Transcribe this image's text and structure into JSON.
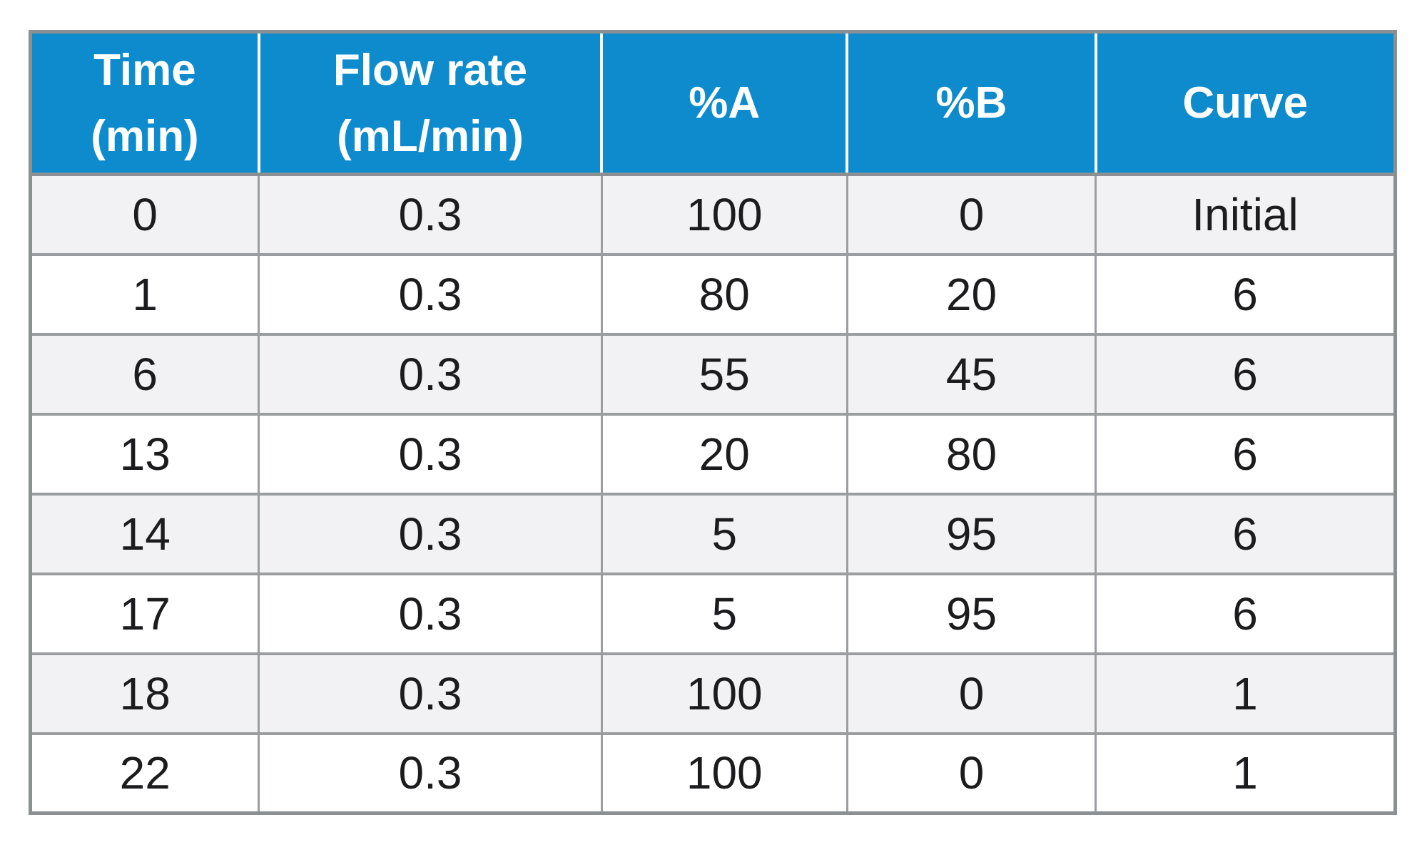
{
  "chart_data": {
    "type": "table",
    "title": "",
    "columns": [
      "Time (min)",
      "Flow rate (mL/min)",
      "%A",
      "%B",
      "Curve"
    ],
    "rows": [
      [
        "0",
        "0.3",
        "100",
        "0",
        "Initial"
      ],
      [
        "1",
        "0.3",
        "80",
        "20",
        "6"
      ],
      [
        "6",
        "0.3",
        "55",
        "45",
        "6"
      ],
      [
        "13",
        "0.3",
        "20",
        "80",
        "6"
      ],
      [
        "14",
        "0.3",
        "5",
        "95",
        "6"
      ],
      [
        "17",
        "0.3",
        "5",
        "95",
        "6"
      ],
      [
        "18",
        "0.3",
        "100",
        "0",
        "1"
      ],
      [
        "22",
        "0.3",
        "100",
        "0",
        "1"
      ]
    ],
    "layout": {
      "header_position": "top",
      "row_striping": "odd-rows-gray",
      "grid": true
    }
  },
  "table": {
    "header_lines": [
      [
        "Time",
        "(min)"
      ],
      [
        "Flow rate",
        "(mL/min)"
      ],
      [
        "%A",
        ""
      ],
      [
        "%B",
        ""
      ],
      [
        "Curve",
        ""
      ]
    ]
  },
  "colors": {
    "header_bg": "#0D8BCD",
    "header_text": "#FFFFFF",
    "header_divider": "#FFFFFF",
    "grid_strong": "#8D9093",
    "grid": "#9B9DA0",
    "row_alt_bg": "#F2F2F4",
    "row_bg": "#FFFFFF",
    "text": "#1C1C1E"
  }
}
